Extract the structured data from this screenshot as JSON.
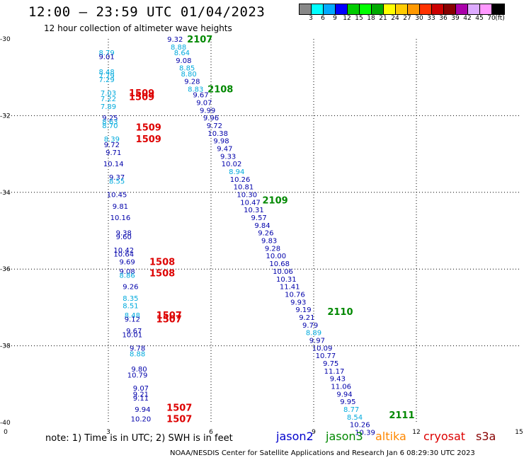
{
  "header": {
    "title": "12:00 — 23:59 UTC 01/04/2023",
    "subtitle": "12 hour collection of altimeter wave heights"
  },
  "colors": {
    "cyan_text": "#00aadd",
    "navy_text": "#0000aa",
    "green_label": "#008800",
    "red_label": "#dd0000",
    "grid": "#000000"
  },
  "legend": {
    "swatches": [
      "#888888",
      "#00ffff",
      "#00aaff",
      "#0000ff",
      "#00cc00",
      "#00ff00",
      "#00aa00",
      "#ffff00",
      "#ffcc00",
      "#ff9900",
      "#ff3300",
      "#cc0000",
      "#880000",
      "#aa00aa",
      "#ddaaff",
      "#ff99ff",
      "#000000"
    ],
    "labels": [
      "3",
      "6",
      "9",
      "12",
      "15",
      "18",
      "21",
      "24",
      "27",
      "30",
      "33",
      "36",
      "39",
      "42",
      "45",
      "70",
      "(ft)"
    ]
  },
  "axes": {
    "x_ticks": [
      "0",
      "3",
      "6",
      "9",
      "12",
      "15"
    ],
    "y_ticks": [
      "-30",
      "-32",
      "-34",
      "-36",
      "-38",
      "-40"
    ]
  },
  "chart_data": {
    "type": "scatter",
    "xlim": [
      0,
      15
    ],
    "ylim": [
      -40,
      -30
    ],
    "grid": true,
    "track_labels": [
      {
        "text": "2107",
        "x": 5.3,
        "y": -30.0,
        "color": "green"
      },
      {
        "text": "2108",
        "x": 5.9,
        "y": -31.3,
        "color": "green"
      },
      {
        "text": "2109",
        "x": 7.5,
        "y": -34.2,
        "color": "green"
      },
      {
        "text": "2110",
        "x": 9.4,
        "y": -37.1,
        "color": "green"
      },
      {
        "text": "2111",
        "x": 11.2,
        "y": -39.8,
        "color": "green"
      },
      {
        "text": "1509",
        "x": 3.6,
        "y": -31.4,
        "color": "red"
      },
      {
        "text": "1509",
        "x": 3.6,
        "y": -31.5,
        "color": "red"
      },
      {
        "text": "1509",
        "x": 3.8,
        "y": -32.3,
        "color": "red"
      },
      {
        "text": "1509",
        "x": 3.8,
        "y": -32.6,
        "color": "red"
      },
      {
        "text": "1508",
        "x": 4.2,
        "y": -35.8,
        "color": "red"
      },
      {
        "text": "1508",
        "x": 4.2,
        "y": -36.1,
        "color": "red"
      },
      {
        "text": "1507",
        "x": 4.4,
        "y": -37.2,
        "color": "red"
      },
      {
        "text": "1507",
        "x": 4.4,
        "y": -37.3,
        "color": "red"
      },
      {
        "text": "1507",
        "x": 4.7,
        "y": -39.6,
        "color": "red"
      },
      {
        "text": "1507",
        "x": 4.7,
        "y": -39.9,
        "color": "red"
      }
    ],
    "points": [
      {
        "v": "9.32",
        "x": 4.95,
        "y": -30.0,
        "c": "n"
      },
      {
        "v": "8.88",
        "x": 5.05,
        "y": -30.2,
        "c": "c"
      },
      {
        "v": "8.64",
        "x": 5.15,
        "y": -30.35,
        "c": "c"
      },
      {
        "v": "9.08",
        "x": 5.2,
        "y": -30.55,
        "c": "n"
      },
      {
        "v": "8.85",
        "x": 5.3,
        "y": -30.75,
        "c": "c"
      },
      {
        "v": "8.80",
        "x": 5.35,
        "y": -30.9,
        "c": "c"
      },
      {
        "v": "9.28",
        "x": 5.45,
        "y": -31.1,
        "c": "n"
      },
      {
        "v": "8.83",
        "x": 5.55,
        "y": -31.3,
        "c": "c"
      },
      {
        "v": "9.67",
        "x": 5.7,
        "y": -31.45,
        "c": "n"
      },
      {
        "v": "9.07",
        "x": 5.8,
        "y": -31.65,
        "c": "n"
      },
      {
        "v": "9.99",
        "x": 5.9,
        "y": -31.85,
        "c": "n"
      },
      {
        "v": "9.96",
        "x": 6.0,
        "y": -32.05,
        "c": "n"
      },
      {
        "v": "9.72",
        "x": 6.1,
        "y": -32.25,
        "c": "n"
      },
      {
        "v": "10.38",
        "x": 6.2,
        "y": -32.45,
        "c": "n"
      },
      {
        "v": "9.98",
        "x": 6.3,
        "y": -32.65,
        "c": "n"
      },
      {
        "v": "9.47",
        "x": 6.4,
        "y": -32.85,
        "c": "n"
      },
      {
        "v": "9.33",
        "x": 6.5,
        "y": -33.05,
        "c": "n"
      },
      {
        "v": "10.02",
        "x": 6.6,
        "y": -33.25,
        "c": "n"
      },
      {
        "v": "8.94",
        "x": 6.75,
        "y": -33.45,
        "c": "c"
      },
      {
        "v": "10.26",
        "x": 6.85,
        "y": -33.65,
        "c": "n"
      },
      {
        "v": "10.81",
        "x": 6.95,
        "y": -33.85,
        "c": "n"
      },
      {
        "v": "10.30",
        "x": 7.05,
        "y": -34.05,
        "c": "n"
      },
      {
        "v": "10.47",
        "x": 7.15,
        "y": -34.25,
        "c": "n"
      },
      {
        "v": "10.31",
        "x": 7.25,
        "y": -34.45,
        "c": "n"
      },
      {
        "v": "9.57",
        "x": 7.4,
        "y": -34.65,
        "c": "n"
      },
      {
        "v": "9.84",
        "x": 7.5,
        "y": -34.85,
        "c": "n"
      },
      {
        "v": "9.26",
        "x": 7.6,
        "y": -35.05,
        "c": "n"
      },
      {
        "v": "9.83",
        "x": 7.7,
        "y": -35.25,
        "c": "n"
      },
      {
        "v": "9.28",
        "x": 7.8,
        "y": -35.45,
        "c": "n"
      },
      {
        "v": "10.00",
        "x": 7.9,
        "y": -35.65,
        "c": "n"
      },
      {
        "v": "10.68",
        "x": 8.0,
        "y": -35.85,
        "c": "n"
      },
      {
        "v": "10.06",
        "x": 8.1,
        "y": -36.05,
        "c": "n"
      },
      {
        "v": "10.31",
        "x": 8.2,
        "y": -36.25,
        "c": "n"
      },
      {
        "v": "11.41",
        "x": 8.3,
        "y": -36.45,
        "c": "n"
      },
      {
        "v": "10.76",
        "x": 8.45,
        "y": -36.65,
        "c": "n"
      },
      {
        "v": "9.93",
        "x": 8.55,
        "y": -36.85,
        "c": "n"
      },
      {
        "v": "9.19",
        "x": 8.7,
        "y": -37.05,
        "c": "n"
      },
      {
        "v": "9.21",
        "x": 8.8,
        "y": -37.25,
        "c": "n"
      },
      {
        "v": "9.79",
        "x": 8.9,
        "y": -37.45,
        "c": "n"
      },
      {
        "v": "8.89",
        "x": 9.0,
        "y": -37.65,
        "c": "c"
      },
      {
        "v": "9.97",
        "x": 9.1,
        "y": -37.85,
        "c": "n"
      },
      {
        "v": "10.09",
        "x": 9.25,
        "y": -38.05,
        "c": "n"
      },
      {
        "v": "10.77",
        "x": 9.35,
        "y": -38.25,
        "c": "n"
      },
      {
        "v": "9.75",
        "x": 9.5,
        "y": -38.45,
        "c": "n"
      },
      {
        "v": "11.17",
        "x": 9.6,
        "y": -38.65,
        "c": "n"
      },
      {
        "v": "9.43",
        "x": 9.7,
        "y": -38.85,
        "c": "n"
      },
      {
        "v": "11.06",
        "x": 9.8,
        "y": -39.05,
        "c": "n"
      },
      {
        "v": "9.94",
        "x": 9.9,
        "y": -39.25,
        "c": "n"
      },
      {
        "v": "9.95",
        "x": 10.0,
        "y": -39.45,
        "c": "n"
      },
      {
        "v": "8.77",
        "x": 10.1,
        "y": -39.65,
        "c": "c"
      },
      {
        "v": "8.54",
        "x": 10.2,
        "y": -39.85,
        "c": "c"
      },
      {
        "v": "10.26",
        "x": 10.35,
        "y": -40.05,
        "c": "n"
      },
      {
        "v": "10.39",
        "x": 10.5,
        "y": -40.25,
        "c": "n"
      },
      {
        "v": "8.79",
        "x": 2.95,
        "y": -30.35,
        "c": "c"
      },
      {
        "v": "9.01",
        "x": 2.95,
        "y": -30.45,
        "c": "n"
      },
      {
        "v": "8.48",
        "x": 2.95,
        "y": -30.85,
        "c": "c"
      },
      {
        "v": "7.79",
        "x": 2.95,
        "y": -30.95,
        "c": "c"
      },
      {
        "v": "7.29",
        "x": 2.95,
        "y": -31.05,
        "c": "c"
      },
      {
        "v": "7.03",
        "x": 3.0,
        "y": -31.4,
        "c": "c"
      },
      {
        "v": "7.22",
        "x": 3.0,
        "y": -31.55,
        "c": "c"
      },
      {
        "v": "7.89",
        "x": 3.0,
        "y": -31.75,
        "c": "c"
      },
      {
        "v": "9.25",
        "x": 3.05,
        "y": -32.05,
        "c": "n"
      },
      {
        "v": "8.63",
        "x": 3.05,
        "y": -32.15,
        "c": "c"
      },
      {
        "v": "8.70",
        "x": 3.05,
        "y": -32.25,
        "c": "c"
      },
      {
        "v": "8.39",
        "x": 3.1,
        "y": -32.6,
        "c": "c"
      },
      {
        "v": "9.72",
        "x": 3.1,
        "y": -32.75,
        "c": "n"
      },
      {
        "v": "9.71",
        "x": 3.15,
        "y": -32.95,
        "c": "n"
      },
      {
        "v": "10.14",
        "x": 3.15,
        "y": -33.25,
        "c": "n"
      },
      {
        "v": "9.37",
        "x": 3.25,
        "y": -33.6,
        "c": "n"
      },
      {
        "v": "8.55",
        "x": 3.25,
        "y": -33.7,
        "c": "c"
      },
      {
        "v": "10.45",
        "x": 3.25,
        "y": -34.05,
        "c": "n"
      },
      {
        "v": "9.81",
        "x": 3.35,
        "y": -34.35,
        "c": "n"
      },
      {
        "v": "10.16",
        "x": 3.35,
        "y": -34.65,
        "c": "n"
      },
      {
        "v": "9.38",
        "x": 3.45,
        "y": -35.05,
        "c": "n"
      },
      {
        "v": "9.60",
        "x": 3.45,
        "y": -35.15,
        "c": "n"
      },
      {
        "v": "10.42",
        "x": 3.45,
        "y": -35.5,
        "c": "n"
      },
      {
        "v": "10.64",
        "x": 3.45,
        "y": -35.6,
        "c": "n"
      },
      {
        "v": "9.69",
        "x": 3.55,
        "y": -35.8,
        "c": "n"
      },
      {
        "v": "9.08",
        "x": 3.55,
        "y": -36.05,
        "c": "n"
      },
      {
        "v": "8.86",
        "x": 3.55,
        "y": -36.15,
        "c": "c"
      },
      {
        "v": "9.26",
        "x": 3.65,
        "y": -36.45,
        "c": "n"
      },
      {
        "v": "8.35",
        "x": 3.65,
        "y": -36.75,
        "c": "c"
      },
      {
        "v": "8.51",
        "x": 3.65,
        "y": -36.95,
        "c": "c"
      },
      {
        "v": "8.48",
        "x": 3.7,
        "y": -37.2,
        "c": "c"
      },
      {
        "v": "9.12",
        "x": 3.7,
        "y": -37.3,
        "c": "n"
      },
      {
        "v": "9.67",
        "x": 3.75,
        "y": -37.6,
        "c": "n"
      },
      {
        "v": "10.01",
        "x": 3.7,
        "y": -37.7,
        "c": "n"
      },
      {
        "v": "9.78",
        "x": 3.85,
        "y": -38.05,
        "c": "n"
      },
      {
        "v": "8.88",
        "x": 3.85,
        "y": -38.2,
        "c": "c"
      },
      {
        "v": "9.80",
        "x": 3.9,
        "y": -38.6,
        "c": "n"
      },
      {
        "v": "10.79",
        "x": 3.85,
        "y": -38.75,
        "c": "n"
      },
      {
        "v": "9.07",
        "x": 3.95,
        "y": -39.1,
        "c": "n"
      },
      {
        "v": "9.21",
        "x": 3.95,
        "y": -39.25,
        "c": "n"
      },
      {
        "v": "9.11",
        "x": 3.95,
        "y": -39.35,
        "c": "n"
      },
      {
        "v": "9.94",
        "x": 4.0,
        "y": -39.65,
        "c": "n"
      },
      {
        "v": "10.20",
        "x": 3.95,
        "y": -39.9,
        "c": "n"
      }
    ]
  },
  "note": "note:  1) Time is in UTC;  2) SWH is in feet",
  "satellites": [
    {
      "name": "jason2",
      "color": "#0000cc"
    },
    {
      "name": "jason3",
      "color": "#008800"
    },
    {
      "name": "altika",
      "color": "#ff8800"
    },
    {
      "name": "cryosat",
      "color": "#dd0000"
    },
    {
      "name": "s3a",
      "color": "#880000"
    }
  ],
  "footer": "NOAA/NESDIS Center for Satellite Applications and Research    Jan  6 08:29:30 UTC 2023"
}
